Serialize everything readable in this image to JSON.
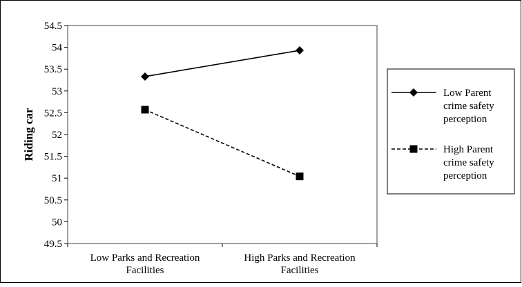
{
  "chart_data": {
    "type": "line",
    "categories": [
      "Low Parks and Recreation Facilities",
      "High Parks and Recreation Facilities"
    ],
    "category_lines": [
      [
        "Low Parks and Recreation",
        "Facilities"
      ],
      [
        "High Parks and Recreation",
        "Facilities"
      ]
    ],
    "series": [
      {
        "name": "Low Parent crime safety perception",
        "name_lines": [
          "Low Parent",
          "crime safety",
          "perception"
        ],
        "values": [
          53.33,
          53.93
        ],
        "line_style": "solid",
        "marker": "diamond",
        "color": "#000000"
      },
      {
        "name": "High Parent crime safety perception",
        "name_lines": [
          "High Parent",
          "crime safety",
          "perception"
        ],
        "values": [
          52.57,
          51.04
        ],
        "line_style": "dashed",
        "marker": "square",
        "color": "#000000"
      }
    ],
    "ylabel": "Riding car",
    "xlabel": "",
    "title": "",
    "ylim": [
      49.5,
      54.5
    ],
    "yticks": [
      "54.5",
      "54",
      "53.5",
      "53",
      "52.5",
      "52",
      "51.5",
      "51",
      "50.5",
      "50",
      "49.5"
    ],
    "grid": false,
    "legend_position": "right"
  }
}
